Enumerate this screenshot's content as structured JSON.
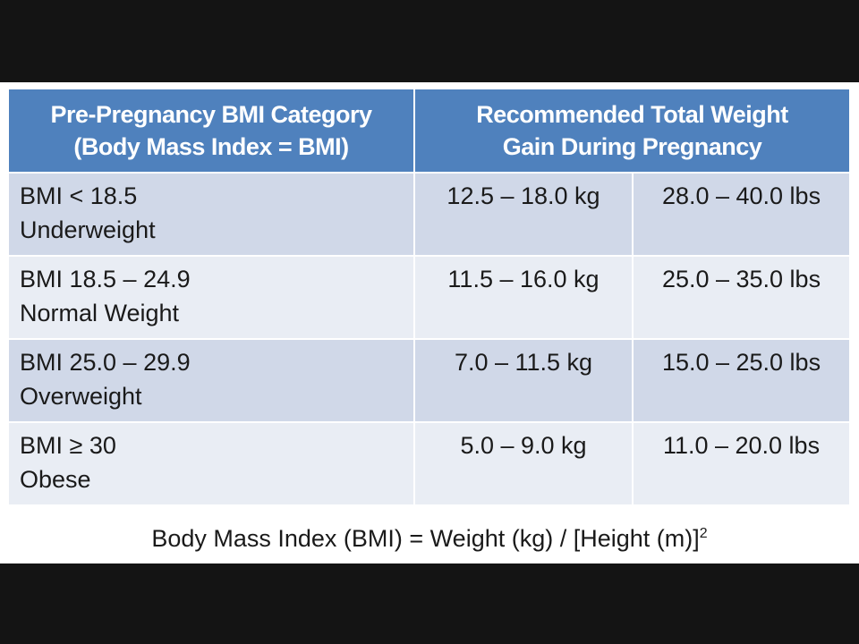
{
  "table": {
    "header": {
      "category_line1": "Pre-Pregnancy BMI Category",
      "category_line2": "(Body Mass Index = BMI)",
      "gain_line1": "Recommended Total Weight",
      "gain_line2": "Gain During Pregnancy"
    },
    "rows": [
      {
        "range": "BMI < 18.5",
        "label": "Underweight",
        "kg": "12.5 – 18.0 kg",
        "lbs": "28.0 – 40.0 lbs"
      },
      {
        "range": "BMI 18.5 – 24.9",
        "label": "Normal Weight",
        "kg": "11.5 – 16.0 kg",
        "lbs": "25.0 – 35.0 lbs"
      },
      {
        "range": "BMI 25.0 – 29.9",
        "label": "Overweight",
        "kg": "7.0 – 11.5 kg",
        "lbs": "15.0 – 25.0 lbs"
      },
      {
        "range": "BMI ≥ 30",
        "label": "Obese",
        "kg": "5.0 – 9.0 kg",
        "lbs": "11.0 – 20.0 lbs"
      }
    ]
  },
  "formula": {
    "text": "Body Mass Index (BMI) = Weight (kg) / [Height (m)]",
    "exponent": "2"
  },
  "colors": {
    "header_bg": "#4f81bd",
    "row_dark": "#d0d8e8",
    "row_light": "#e9edf4"
  }
}
